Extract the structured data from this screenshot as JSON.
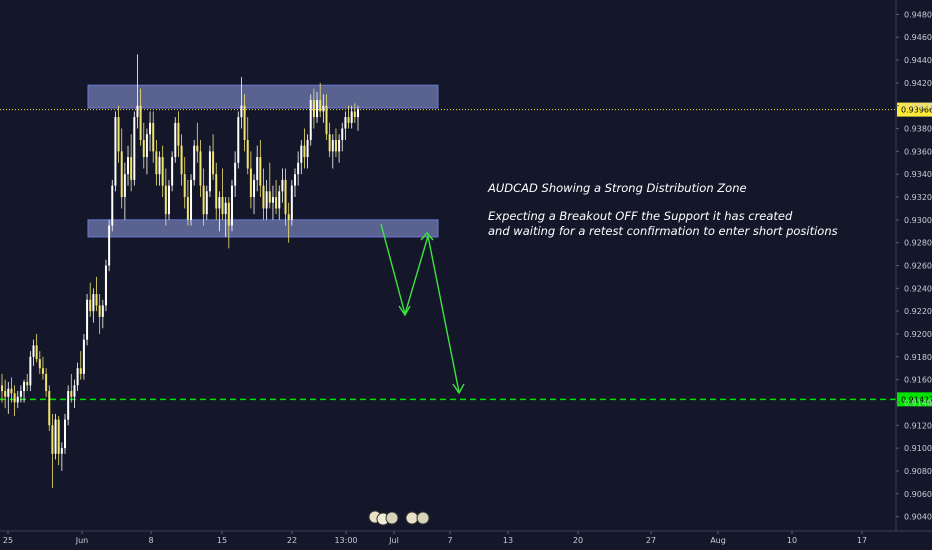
{
  "chart_data": {
    "type": "candlestick",
    "ylim": [
      0.903,
      0.949
    ],
    "y_ticks": [
      "0.94800",
      "0.94600",
      "0.94400",
      "0.94200",
      "0.94000",
      "0.93800",
      "0.93600",
      "0.93400",
      "0.93200",
      "0.93000",
      "0.92800",
      "0.92600",
      "0.92400",
      "0.92200",
      "0.92000",
      "0.91800",
      "0.91600",
      "0.91400",
      "0.91200",
      "0.91000",
      "0.90800",
      "0.90600",
      "0.90400"
    ],
    "x_labels": [
      "25",
      "Jun",
      "8",
      "15",
      "22",
      "13:00",
      "Jul",
      "7",
      "13",
      "20",
      "27",
      "Aug",
      "10",
      "17"
    ],
    "current_price": {
      "label": "0.93966",
      "value": 0.93966,
      "color": "#ffeb3b"
    },
    "target_price": {
      "label": "0.91427",
      "value": 0.91427,
      "color": "#00e600"
    },
    "zones": [
      {
        "name": "resistance",
        "top": 0.9418,
        "bottom": 0.9398
      },
      {
        "name": "support",
        "top": 0.93,
        "bottom": 0.9285
      }
    ],
    "candles": [
      [
        0.9155,
        0.9165,
        0.914,
        0.915
      ],
      [
        0.915,
        0.916,
        0.9135,
        0.9145
      ],
      [
        0.9145,
        0.9158,
        0.913,
        0.9152
      ],
      [
        0.9152,
        0.9162,
        0.914,
        0.9148
      ],
      [
        0.9148,
        0.9155,
        0.9128,
        0.914
      ],
      [
        0.914,
        0.915,
        0.9135,
        0.9145
      ],
      [
        0.9145,
        0.9155,
        0.914,
        0.915
      ],
      [
        0.915,
        0.916,
        0.914,
        0.9158
      ],
      [
        0.9158,
        0.9165,
        0.915,
        0.9155
      ],
      [
        0.9155,
        0.9185,
        0.915,
        0.918
      ],
      [
        0.918,
        0.9195,
        0.9172,
        0.919
      ],
      [
        0.919,
        0.92,
        0.9175,
        0.9178
      ],
      [
        0.9178,
        0.9185,
        0.9165,
        0.917
      ],
      [
        0.917,
        0.918,
        0.916,
        0.9165
      ],
      [
        0.9165,
        0.917,
        0.9145,
        0.915
      ],
      [
        0.915,
        0.9155,
        0.9115,
        0.912
      ],
      [
        0.912,
        0.913,
        0.9065,
        0.9095
      ],
      [
        0.9095,
        0.913,
        0.909,
        0.9125
      ],
      [
        0.9125,
        0.9128,
        0.9085,
        0.9095
      ],
      [
        0.9095,
        0.9105,
        0.908,
        0.91
      ],
      [
        0.91,
        0.913,
        0.9095,
        0.9125
      ],
      [
        0.9125,
        0.9155,
        0.912,
        0.915
      ],
      [
        0.915,
        0.9165,
        0.914,
        0.9145
      ],
      [
        0.9145,
        0.916,
        0.9135,
        0.9155
      ],
      [
        0.9155,
        0.9175,
        0.915,
        0.917
      ],
      [
        0.917,
        0.9185,
        0.916,
        0.9165
      ],
      [
        0.9165,
        0.92,
        0.916,
        0.9195
      ],
      [
        0.9195,
        0.9235,
        0.919,
        0.923
      ],
      [
        0.923,
        0.9245,
        0.9215,
        0.922
      ],
      [
        0.922,
        0.924,
        0.921,
        0.9235
      ],
      [
        0.9235,
        0.925,
        0.922,
        0.9225
      ],
      [
        0.9225,
        0.9235,
        0.92,
        0.9215
      ],
      [
        0.9215,
        0.923,
        0.9205,
        0.9225
      ],
      [
        0.9225,
        0.9265,
        0.922,
        0.926
      ],
      [
        0.926,
        0.93,
        0.9255,
        0.9295
      ],
      [
        0.9295,
        0.9335,
        0.929,
        0.933
      ],
      [
        0.933,
        0.9395,
        0.9325,
        0.939
      ],
      [
        0.939,
        0.94,
        0.935,
        0.936
      ],
      [
        0.936,
        0.938,
        0.931,
        0.932
      ],
      [
        0.932,
        0.935,
        0.93,
        0.934
      ],
      [
        0.934,
        0.9365,
        0.933,
        0.9355
      ],
      [
        0.9355,
        0.9375,
        0.9325,
        0.9335
      ],
      [
        0.9335,
        0.9395,
        0.933,
        0.939
      ],
      [
        0.939,
        0.9445,
        0.938,
        0.94
      ],
      [
        0.94,
        0.9415,
        0.9365,
        0.937
      ],
      [
        0.937,
        0.9385,
        0.9345,
        0.9355
      ],
      [
        0.9355,
        0.938,
        0.934,
        0.9375
      ],
      [
        0.9375,
        0.9395,
        0.936,
        0.9385
      ],
      [
        0.9385,
        0.9395,
        0.935,
        0.936
      ],
      [
        0.936,
        0.937,
        0.933,
        0.934
      ],
      [
        0.934,
        0.936,
        0.933,
        0.9355
      ],
      [
        0.9355,
        0.9365,
        0.932,
        0.933
      ],
      [
        0.933,
        0.9345,
        0.9295,
        0.9305
      ],
      [
        0.9305,
        0.9335,
        0.93,
        0.933
      ],
      [
        0.933,
        0.936,
        0.9325,
        0.9355
      ],
      [
        0.9355,
        0.939,
        0.935,
        0.9385
      ],
      [
        0.9385,
        0.9395,
        0.9355,
        0.9365
      ],
      [
        0.9365,
        0.9375,
        0.933,
        0.934
      ],
      [
        0.934,
        0.9355,
        0.931,
        0.932
      ],
      [
        0.932,
        0.9335,
        0.9295,
        0.93
      ],
      [
        0.93,
        0.934,
        0.9295,
        0.9335
      ],
      [
        0.9335,
        0.937,
        0.933,
        0.9365
      ],
      [
        0.9365,
        0.9385,
        0.935,
        0.936
      ],
      [
        0.936,
        0.937,
        0.932,
        0.933
      ],
      [
        0.933,
        0.9345,
        0.9295,
        0.9305
      ],
      [
        0.9305,
        0.933,
        0.93,
        0.9325
      ],
      [
        0.9325,
        0.9365,
        0.932,
        0.936
      ],
      [
        0.936,
        0.9375,
        0.9335,
        0.934
      ],
      [
        0.934,
        0.935,
        0.93,
        0.931
      ],
      [
        0.931,
        0.9325,
        0.929,
        0.932
      ],
      [
        0.932,
        0.9345,
        0.93,
        0.9305
      ],
      [
        0.9305,
        0.932,
        0.9285,
        0.9315
      ],
      [
        0.9315,
        0.932,
        0.9275,
        0.9295
      ],
      [
        0.9295,
        0.9335,
        0.929,
        0.933
      ],
      [
        0.933,
        0.936,
        0.932,
        0.935
      ],
      [
        0.935,
        0.9395,
        0.9345,
        0.939
      ],
      [
        0.939,
        0.9425,
        0.938,
        0.94
      ],
      [
        0.94,
        0.941,
        0.936,
        0.937
      ],
      [
        0.937,
        0.939,
        0.934,
        0.9345
      ],
      [
        0.9345,
        0.936,
        0.931,
        0.932
      ],
      [
        0.932,
        0.934,
        0.9305,
        0.9335
      ],
      [
        0.9335,
        0.9365,
        0.9325,
        0.9355
      ],
      [
        0.9355,
        0.937,
        0.932,
        0.933
      ],
      [
        0.933,
        0.9345,
        0.93,
        0.931
      ],
      [
        0.931,
        0.9335,
        0.93,
        0.9325
      ],
      [
        0.9325,
        0.935,
        0.931,
        0.9315
      ],
      [
        0.9315,
        0.933,
        0.93,
        0.932
      ],
      [
        0.932,
        0.9335,
        0.9305,
        0.931
      ],
      [
        0.931,
        0.933,
        0.93,
        0.9325
      ],
      [
        0.9325,
        0.9345,
        0.9315,
        0.9335
      ],
      [
        0.9335,
        0.9345,
        0.9295,
        0.9305
      ],
      [
        0.9305,
        0.9315,
        0.928,
        0.93
      ],
      [
        0.93,
        0.9335,
        0.9295,
        0.933
      ],
      [
        0.933,
        0.9345,
        0.932,
        0.934
      ],
      [
        0.934,
        0.936,
        0.933,
        0.935
      ],
      [
        0.935,
        0.937,
        0.934,
        0.9365
      ],
      [
        0.9365,
        0.938,
        0.9345,
        0.9355
      ],
      [
        0.9355,
        0.9375,
        0.9345,
        0.937
      ],
      [
        0.937,
        0.941,
        0.9365,
        0.9405
      ],
      [
        0.9405,
        0.9415,
        0.938,
        0.939
      ],
      [
        0.939,
        0.9412,
        0.9385,
        0.9405
      ],
      [
        0.9405,
        0.942,
        0.939,
        0.9395
      ],
      [
        0.9395,
        0.941,
        0.9385,
        0.94
      ],
      [
        0.94,
        0.941,
        0.937,
        0.9375
      ],
      [
        0.9375,
        0.9385,
        0.9355,
        0.936
      ],
      [
        0.936,
        0.9375,
        0.9345,
        0.937
      ],
      [
        0.937,
        0.938,
        0.9355,
        0.936
      ],
      [
        0.936,
        0.9375,
        0.935,
        0.937
      ],
      [
        0.937,
        0.9385,
        0.936,
        0.938
      ],
      [
        0.938,
        0.9395,
        0.937,
        0.939
      ],
      [
        0.939,
        0.94,
        0.938,
        0.9385
      ],
      [
        0.9385,
        0.94,
        0.938,
        0.9395
      ],
      [
        0.9395,
        0.9402,
        0.9385,
        0.939
      ],
      [
        0.939,
        0.94,
        0.9378,
        0.9397
      ]
    ]
  },
  "annotation": {
    "line1": "AUDCAD Showing a Strong Distribution Zone",
    "line2": "Expecting a Breakout OFF the Support it has created",
    "line3": "and waiting for a retest confirmation to enter short positions"
  }
}
